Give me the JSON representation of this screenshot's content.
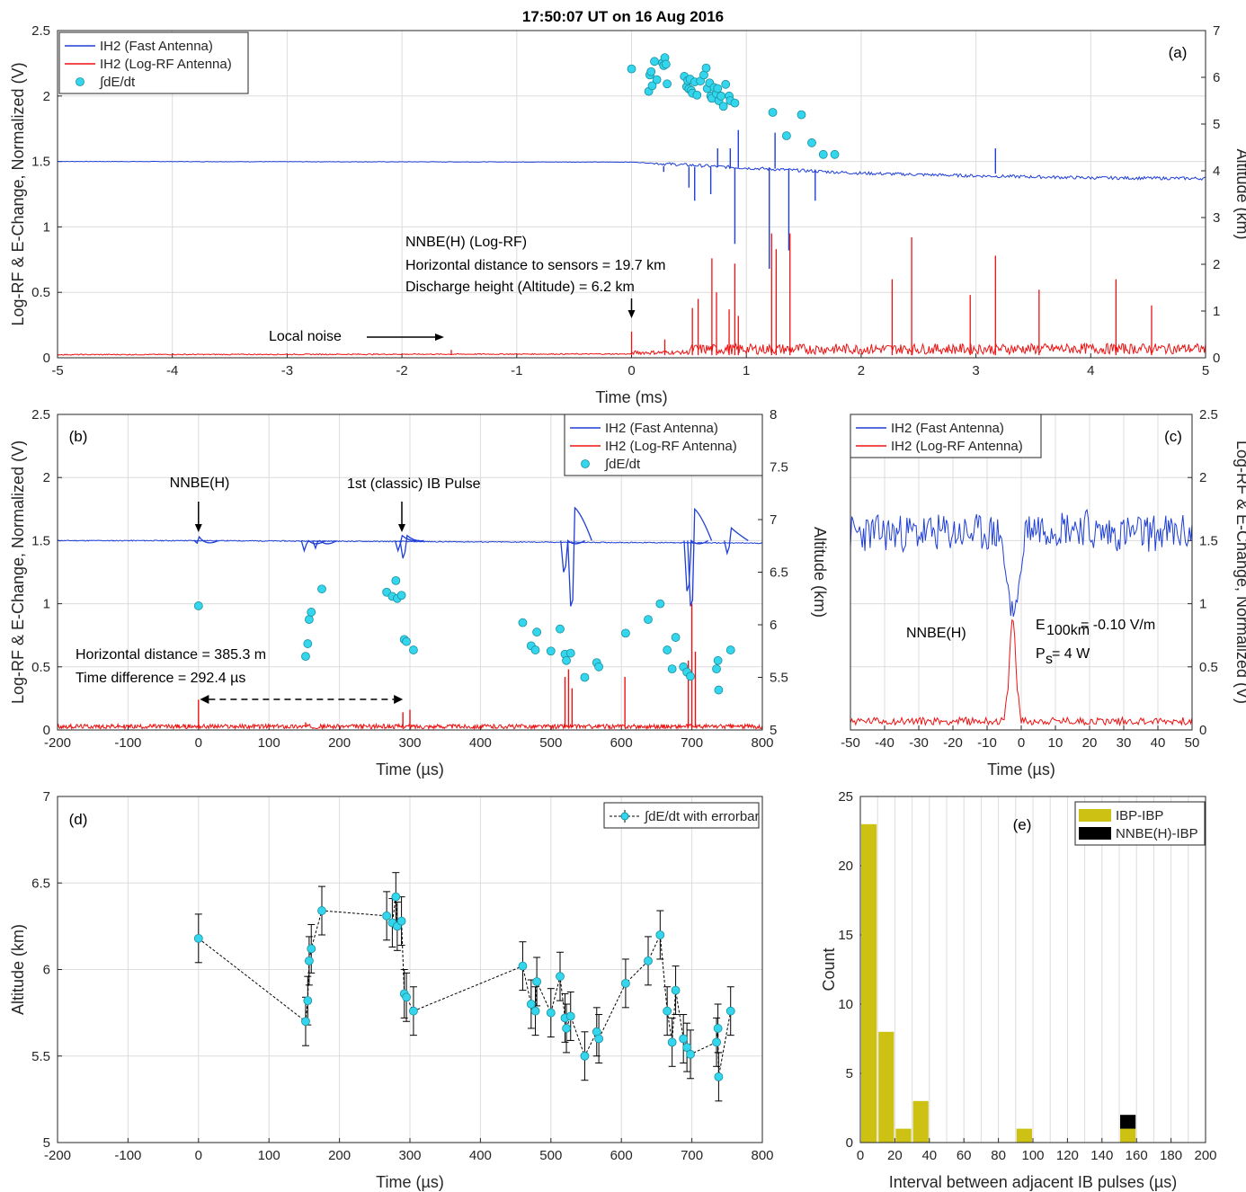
{
  "figure_title": "17:50:07 UT on 16 Aug 2016",
  "colors": {
    "fast": "#1f3fd6",
    "logrf": "#ee1111",
    "dot": "#33d6ec",
    "dot_edge": "#1a8fa0",
    "ibp": "#cdc214",
    "nnbe": "#000000"
  },
  "chart_data": [
    {
      "panel": "(a)",
      "type": "line",
      "xlabel": "Time (ms)",
      "ylabel": "Log-RF & E-Change, Normalized (V)",
      "y2label": "Altitude (km)",
      "xlim": [
        -5,
        5
      ],
      "ylim": [
        0,
        2.5
      ],
      "y2lim": [
        0,
        7
      ],
      "xticks": [
        "-5",
        "-4",
        "-3",
        "-2",
        "-1",
        "0",
        "1",
        "2",
        "3",
        "4",
        "5"
      ],
      "yticks": [
        "0",
        "0.5",
        "1",
        "1.5",
        "2",
        "2.5"
      ],
      "y2ticks": [
        "0",
        "1",
        "2",
        "3",
        "4",
        "5",
        "6",
        "7"
      ],
      "legend": [
        "IH2 (Fast Antenna)",
        "IH2 (Log-RF Antenna)",
        "∫dE/dt"
      ],
      "legend_placement": "top-left",
      "annotations": [
        "NNBE(H) (Log-RF)",
        "Horizontal distance to sensors = 19.7 km",
        "Discharge height (Altitude) = 6.2 km",
        "Local noise"
      ],
      "fast_baseline": {
        "x": [
          -5,
          0,
          1,
          2,
          3,
          4,
          5
        ],
        "y": [
          1.5,
          1.495,
          1.45,
          1.41,
          1.39,
          1.375,
          1.37
        ]
      },
      "fast_spikes": [
        {
          "x": 0.28,
          "y": 1.42
        },
        {
          "x": 0.5,
          "y": 1.3
        },
        {
          "x": 0.55,
          "y": 1.2
        },
        {
          "x": 0.69,
          "y": 1.25
        },
        {
          "x": 0.75,
          "y": 1.6
        },
        {
          "x": 0.86,
          "y": 1.6
        },
        {
          "x": 0.9,
          "y": 0.87
        },
        {
          "x": 0.93,
          "y": 1.74
        },
        {
          "x": 1.2,
          "y": 0.68
        },
        {
          "x": 1.25,
          "y": 1.72
        },
        {
          "x": 1.37,
          "y": 0.82
        },
        {
          "x": 1.6,
          "y": 1.2
        },
        {
          "x": 3.17,
          "y": 1.6
        }
      ],
      "logrf_spikes": [
        {
          "x": -1.57,
          "y": 0.06
        },
        {
          "x": 0.0,
          "y": 0.2
        },
        {
          "x": 0.29,
          "y": 0.14
        },
        {
          "x": 0.53,
          "y": 0.38
        },
        {
          "x": 0.58,
          "y": 0.45
        },
        {
          "x": 0.7,
          "y": 0.76
        },
        {
          "x": 0.74,
          "y": 0.5
        },
        {
          "x": 0.85,
          "y": 0.37
        },
        {
          "x": 0.9,
          "y": 0.72
        },
        {
          "x": 0.93,
          "y": 0.32
        },
        {
          "x": 1.22,
          "y": 0.95
        },
        {
          "x": 1.26,
          "y": 0.83
        },
        {
          "x": 1.38,
          "y": 0.95
        },
        {
          "x": 2.27,
          "y": 0.6
        },
        {
          "x": 2.44,
          "y": 0.92
        },
        {
          "x": 2.95,
          "y": 0.48
        },
        {
          "x": 3.17,
          "y": 0.78
        },
        {
          "x": 3.55,
          "y": 0.52
        },
        {
          "x": 4.22,
          "y": 0.6
        },
        {
          "x": 4.53,
          "y": 0.4
        }
      ],
      "altitude_points": [
        {
          "x": 0,
          "y": 6.18
        },
        {
          "x": 0.15,
          "y": 5.7
        },
        {
          "x": 0.16,
          "y": 6.05
        },
        {
          "x": 0.17,
          "y": 6.12
        },
        {
          "x": 0.18,
          "y": 5.82
        },
        {
          "x": 0.2,
          "y": 6.34
        },
        {
          "x": 0.22,
          "y": 5.95
        },
        {
          "x": 0.27,
          "y": 6.31
        },
        {
          "x": 0.28,
          "y": 6.25
        },
        {
          "x": 0.29,
          "y": 6.42
        },
        {
          "x": 0.3,
          "y": 6.28
        },
        {
          "x": 0.31,
          "y": 5.86
        },
        {
          "x": 0.46,
          "y": 6.02
        },
        {
          "x": 0.48,
          "y": 5.8
        },
        {
          "x": 0.49,
          "y": 5.93
        },
        {
          "x": 0.5,
          "y": 5.75
        },
        {
          "x": 0.51,
          "y": 5.96
        },
        {
          "x": 0.52,
          "y": 5.72
        },
        {
          "x": 0.53,
          "y": 5.66
        },
        {
          "x": 0.55,
          "y": 5.9
        },
        {
          "x": 0.57,
          "y": 5.62
        },
        {
          "x": 0.6,
          "y": 5.92
        },
        {
          "x": 0.63,
          "y": 6.05
        },
        {
          "x": 0.65,
          "y": 6.2
        },
        {
          "x": 0.66,
          "y": 5.76
        },
        {
          "x": 0.68,
          "y": 5.88
        },
        {
          "x": 0.69,
          "y": 5.6
        },
        {
          "x": 0.7,
          "y": 5.55
        },
        {
          "x": 0.72,
          "y": 5.78
        },
        {
          "x": 0.74,
          "y": 5.65
        },
        {
          "x": 0.75,
          "y": 5.76
        },
        {
          "x": 0.76,
          "y": 5.5
        },
        {
          "x": 0.78,
          "y": 5.6
        },
        {
          "x": 0.8,
          "y": 5.38
        },
        {
          "x": 0.82,
          "y": 5.85
        },
        {
          "x": 0.85,
          "y": 5.6
        },
        {
          "x": 0.86,
          "y": 5.5
        },
        {
          "x": 0.9,
          "y": 5.45
        },
        {
          "x": 1.23,
          "y": 5.25
        },
        {
          "x": 1.35,
          "y": 4.75
        },
        {
          "x": 1.48,
          "y": 5.2
        },
        {
          "x": 1.57,
          "y": 4.6
        },
        {
          "x": 1.67,
          "y": 4.35
        },
        {
          "x": 1.77,
          "y": 4.35
        }
      ]
    },
    {
      "panel": "(b)",
      "type": "line",
      "xlabel": "Time (µs)",
      "ylabel": "Log-RF & E-Change, Normalized (V)",
      "y2label": "Altitude (km)",
      "xlim": [
        -200,
        800
      ],
      "ylim": [
        0,
        2.5
      ],
      "y2lim": [
        5,
        8
      ],
      "xticks": [
        "-200",
        "-100",
        "0",
        "100",
        "200",
        "300",
        "400",
        "500",
        "600",
        "700",
        "800"
      ],
      "yticks": [
        "0",
        "0.5",
        "1",
        "1.5",
        "2",
        "2.5"
      ],
      "y2ticks": [
        "5",
        "5.5",
        "6",
        "6.5",
        "7",
        "7.5",
        "8"
      ],
      "legend": [
        "IH2 (Fast Antenna)",
        "IH2 (Log-RF Antenna)",
        "∫dE/dt"
      ],
      "legend_placement": "top-right",
      "annotations": [
        "NNBE(H)",
        "1st (classic) IB Pulse",
        "Horizontal distance = 385.3 m",
        "Time difference = 292.4 µs"
      ],
      "fast_events": [
        {
          "x": 0,
          "dip": 1.48,
          "peak": 1.51
        },
        {
          "x": 152,
          "dip": 1.42,
          "peak": 1.5
        },
        {
          "x": 168,
          "dip": 1.44,
          "peak": 1.5
        },
        {
          "x": 285,
          "dip": 1.42,
          "peak": 1.54
        },
        {
          "x": 292,
          "dip": 1.36,
          "peak": 1.54
        },
        {
          "x": 520,
          "dip": 1.25,
          "peak": 1.5
        },
        {
          "x": 530,
          "dip": 0.98,
          "peak": 1.76
        },
        {
          "x": 695,
          "dip": 1.1,
          "peak": 1.5
        },
        {
          "x": 700,
          "dip": 0.98,
          "peak": 1.75
        },
        {
          "x": 752,
          "dip": 1.4,
          "peak": 1.6
        }
      ],
      "logrf_events": [
        {
          "x": 0,
          "y": 0.24
        },
        {
          "x": 152,
          "y": 0.06
        },
        {
          "x": 290,
          "y": 0.14
        },
        {
          "x": 300,
          "y": 0.16
        },
        {
          "x": 520,
          "y": 0.42
        },
        {
          "x": 525,
          "y": 0.48
        },
        {
          "x": 530,
          "y": 0.33
        },
        {
          "x": 605,
          "y": 0.42
        },
        {
          "x": 695,
          "y": 0.55
        },
        {
          "x": 700,
          "y": 1.0
        },
        {
          "x": 705,
          "y": 0.62
        }
      ],
      "altitude_points": [
        {
          "x": 0,
          "y": 6.18
        },
        {
          "x": 152,
          "y": 5.7
        },
        {
          "x": 155,
          "y": 5.82
        },
        {
          "x": 157,
          "y": 6.05
        },
        {
          "x": 160,
          "y": 6.12
        },
        {
          "x": 175,
          "y": 6.34
        },
        {
          "x": 267,
          "y": 6.31
        },
        {
          "x": 275,
          "y": 6.27
        },
        {
          "x": 280,
          "y": 6.42
        },
        {
          "x": 282,
          "y": 6.25
        },
        {
          "x": 288,
          "y": 6.28
        },
        {
          "x": 292,
          "y": 5.86
        },
        {
          "x": 295,
          "y": 5.84
        },
        {
          "x": 305,
          "y": 5.76
        },
        {
          "x": 460,
          "y": 6.02
        },
        {
          "x": 472,
          "y": 5.8
        },
        {
          "x": 478,
          "y": 5.76
        },
        {
          "x": 480,
          "y": 5.93
        },
        {
          "x": 500,
          "y": 5.75
        },
        {
          "x": 513,
          "y": 5.96
        },
        {
          "x": 520,
          "y": 5.72
        },
        {
          "x": 522,
          "y": 5.66
        },
        {
          "x": 528,
          "y": 5.73
        },
        {
          "x": 548,
          "y": 5.5
        },
        {
          "x": 565,
          "y": 5.64
        },
        {
          "x": 568,
          "y": 5.6
        },
        {
          "x": 606,
          "y": 5.92
        },
        {
          "x": 638,
          "y": 6.05
        },
        {
          "x": 655,
          "y": 6.2
        },
        {
          "x": 665,
          "y": 5.76
        },
        {
          "x": 672,
          "y": 5.58
        },
        {
          "x": 677,
          "y": 5.88
        },
        {
          "x": 688,
          "y": 5.6
        },
        {
          "x": 693,
          "y": 5.55
        },
        {
          "x": 698,
          "y": 5.51
        },
        {
          "x": 735,
          "y": 5.58
        },
        {
          "x": 737,
          "y": 5.66
        },
        {
          "x": 738,
          "y": 5.38
        },
        {
          "x": 755,
          "y": 5.76
        }
      ]
    },
    {
      "panel": "(c)",
      "type": "line",
      "xlabel": "Time (µs)",
      "ylabel": "Log-RF & E-Change, Normalized (V)",
      "xlim": [
        -50,
        50
      ],
      "ylim": [
        0,
        2.5
      ],
      "xticks": [
        "-50",
        "-40",
        "-30",
        "-20",
        "-10",
        "0",
        "10",
        "20",
        "30",
        "40",
        "50"
      ],
      "yticks": [
        "0",
        "0.5",
        "1",
        "1.5",
        "2",
        "2.5"
      ],
      "legend": [
        "IH2 (Fast Antenna)",
        "IH2 (Log-RF Antenna)"
      ],
      "legend_placement": "top-left",
      "annotations": [
        "NNBE(H)",
        "E",
        "100km",
        " = -0.10 V/m",
        "P",
        "s",
        " = 4 W"
      ],
      "fast_baseline": 1.56,
      "fast_dip": {
        "x": -2,
        "y": 0.9
      },
      "logrf_peak": {
        "x": -2.5,
        "y": 0.9
      }
    },
    {
      "panel": "(d)",
      "type": "scatter",
      "xlabel": "Time (µs)",
      "ylabel": "Altitude (km)",
      "xlim": [
        -200,
        800
      ],
      "ylim": [
        5,
        7
      ],
      "xticks": [
        "-200",
        "-100",
        "0",
        "100",
        "200",
        "300",
        "400",
        "500",
        "600",
        "700",
        "800"
      ],
      "yticks": [
        "5",
        "5.5",
        "6",
        "6.5",
        "7"
      ],
      "legend": [
        "∫dE/dt with errorbar"
      ],
      "legend_placement": "top-right",
      "err": 0.14,
      "points": [
        {
          "x": 0,
          "y": 6.18
        },
        {
          "x": 152,
          "y": 5.7
        },
        {
          "x": 155,
          "y": 5.82
        },
        {
          "x": 157,
          "y": 6.05
        },
        {
          "x": 160,
          "y": 6.12
        },
        {
          "x": 175,
          "y": 6.34
        },
        {
          "x": 267,
          "y": 6.31
        },
        {
          "x": 275,
          "y": 6.27
        },
        {
          "x": 280,
          "y": 6.42
        },
        {
          "x": 282,
          "y": 6.25
        },
        {
          "x": 288,
          "y": 6.28
        },
        {
          "x": 292,
          "y": 5.86
        },
        {
          "x": 295,
          "y": 5.84
        },
        {
          "x": 305,
          "y": 5.76
        },
        {
          "x": 460,
          "y": 6.02
        },
        {
          "x": 472,
          "y": 5.8
        },
        {
          "x": 478,
          "y": 5.76
        },
        {
          "x": 480,
          "y": 5.93
        },
        {
          "x": 500,
          "y": 5.75
        },
        {
          "x": 513,
          "y": 5.96
        },
        {
          "x": 520,
          "y": 5.72
        },
        {
          "x": 522,
          "y": 5.66
        },
        {
          "x": 528,
          "y": 5.73
        },
        {
          "x": 548,
          "y": 5.5
        },
        {
          "x": 565,
          "y": 5.64
        },
        {
          "x": 568,
          "y": 5.6
        },
        {
          "x": 606,
          "y": 5.92
        },
        {
          "x": 638,
          "y": 6.05
        },
        {
          "x": 655,
          "y": 6.2
        },
        {
          "x": 665,
          "y": 5.76
        },
        {
          "x": 672,
          "y": 5.58
        },
        {
          "x": 677,
          "y": 5.88
        },
        {
          "x": 688,
          "y": 5.6
        },
        {
          "x": 693,
          "y": 5.55
        },
        {
          "x": 698,
          "y": 5.51
        },
        {
          "x": 735,
          "y": 5.58
        },
        {
          "x": 737,
          "y": 5.66
        },
        {
          "x": 738,
          "y": 5.38
        },
        {
          "x": 755,
          "y": 5.76
        }
      ]
    },
    {
      "panel": "(e)",
      "type": "bar",
      "xlabel": "Interval between adjacent IB pulses (µs)",
      "ylabel": "Count",
      "xlim": [
        0,
        200
      ],
      "ylim": [
        0,
        25
      ],
      "xticks": [
        "0",
        "20",
        "40",
        "60",
        "80",
        "100",
        "120",
        "140",
        "160",
        "180",
        "200"
      ],
      "yticks": [
        "0",
        "5",
        "10",
        "15",
        "20",
        "25"
      ],
      "legend": [
        "IBP-IBP",
        "NNBE(H)-IBP"
      ],
      "legend_placement": "top-right",
      "bins": [
        {
          "x0": 0,
          "x1": 10,
          "ibp": 23,
          "nnbe": 0
        },
        {
          "x0": 10,
          "x1": 20,
          "ibp": 8,
          "nnbe": 0
        },
        {
          "x0": 20,
          "x1": 30,
          "ibp": 1,
          "nnbe": 0
        },
        {
          "x0": 30,
          "x1": 40,
          "ibp": 3,
          "nnbe": 0
        },
        {
          "x0": 90,
          "x1": 100,
          "ibp": 1,
          "nnbe": 0
        },
        {
          "x0": 150,
          "x1": 160,
          "ibp": 1,
          "nnbe": 1
        }
      ]
    }
  ]
}
